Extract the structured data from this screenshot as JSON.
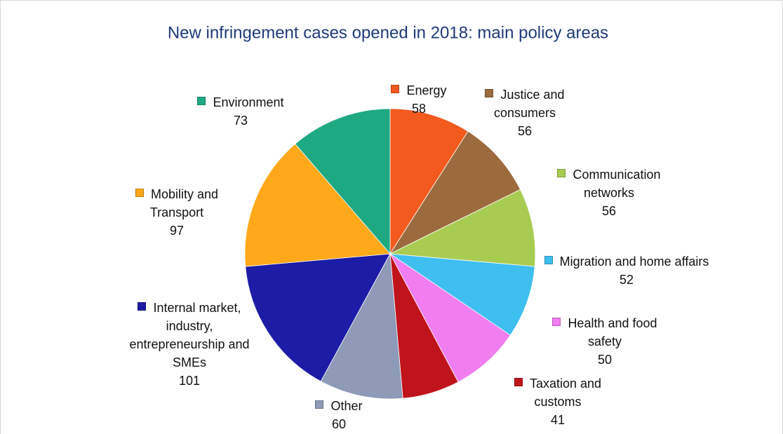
{
  "chart_data": {
    "type": "pie",
    "title": "New infringement cases opened in 2018: main policy areas",
    "categories": [
      "Energy",
      "Justice and consumers",
      "Communication networks",
      "Migration and home affairs",
      "Health and food safety",
      "Taxation and customs",
      "Other",
      "Internal market, industry, entrepreneurship and SMEs",
      "Mobility and Transport",
      "Environment"
    ],
    "values": [
      58,
      56,
      56,
      52,
      50,
      41,
      60,
      101,
      97,
      73
    ],
    "colors": [
      "#f25a1e",
      "#9c6b3d",
      "#a8cc52",
      "#3fbef0",
      "#f07ef0",
      "#c0141c",
      "#8e9ab8",
      "#1c1ca6",
      "#ffa91a",
      "#1fa982"
    ]
  }
}
